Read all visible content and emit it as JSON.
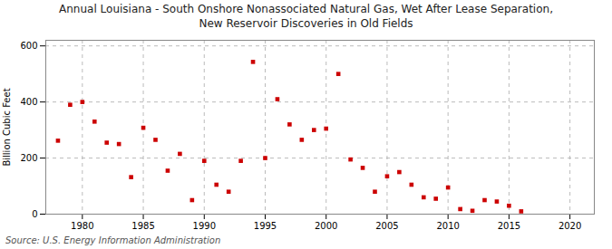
{
  "chart_data": {
    "type": "scatter",
    "title": "Annual Louisiana - South Onshore Nonassociated Natural Gas, Wet After Lease Separation,\nNew Reservoir Discoveries in Old Fields",
    "ylabel": "Billion Cubic Feet",
    "source": "Source: U.S. Energy Information Administration",
    "color": "#cc0000",
    "marker": "square",
    "grid": true,
    "xlim": [
      1977,
      2022
    ],
    "ylim": [
      0,
      620
    ],
    "xticks": [
      1980,
      1985,
      1990,
      1995,
      2000,
      2005,
      2010,
      2015,
      2020
    ],
    "yticks": [
      0,
      200,
      400,
      600
    ],
    "x": [
      1978,
      1979,
      1980,
      1981,
      1982,
      1983,
      1984,
      1985,
      1986,
      1987,
      1988,
      1989,
      1990,
      1991,
      1992,
      1993,
      1994,
      1995,
      1996,
      1997,
      1998,
      1999,
      2000,
      2001,
      2002,
      2003,
      2004,
      2005,
      2006,
      2007,
      2008,
      2009,
      2010,
      2011,
      2012,
      2013,
      2014,
      2015,
      2016
    ],
    "values": [
      262,
      390,
      400,
      330,
      255,
      250,
      132,
      308,
      265,
      155,
      215,
      50,
      190,
      105,
      80,
      190,
      543,
      200,
      410,
      320,
      265,
      300,
      305,
      500,
      195,
      165,
      80,
      135,
      150,
      105,
      60,
      55,
      95,
      18,
      12,
      50,
      45,
      30,
      10
    ]
  }
}
